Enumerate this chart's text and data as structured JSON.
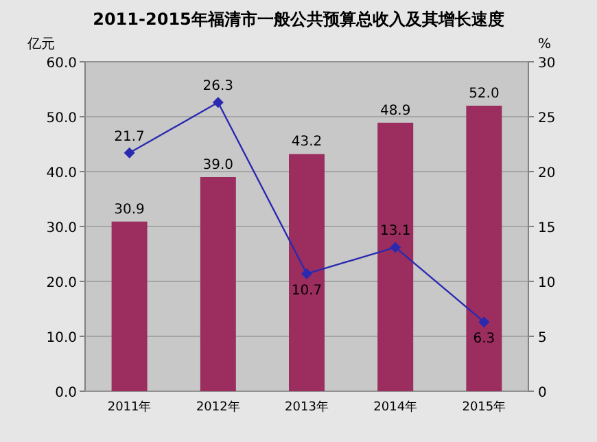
{
  "chart_data": {
    "type": "bar",
    "title": "2011-2015年福清市一般公共预算总收入及其增长速度",
    "ylabel": "亿元",
    "y2label": "%",
    "categories": [
      "2011年",
      "2012年",
      "2013年",
      "2014年",
      "2015年"
    ],
    "series": [
      {
        "color": "#9b2d5f",
        "values": [
          30.9,
          39.0,
          43.2,
          48.9,
          52.0
        ],
        "value_labels": [
          "30.9",
          "39.0",
          "43.2",
          "48.9",
          "52.0"
        ]
      },
      {
        "type": "line",
        "axis": "y2",
        "color": "#2a2ab0",
        "marker": "diamond",
        "values": [
          21.7,
          26.3,
          10.7,
          13.1,
          6.3
        ],
        "value_labels": [
          "21.7",
          "26.3",
          "10.7",
          "13.1",
          "6.3"
        ]
      }
    ],
    "ylim": [
      0,
      60
    ],
    "yticks": [
      {
        "value": 0,
        "label": "0.0"
      },
      {
        "value": 10,
        "label": "10.0"
      },
      {
        "value": 20,
        "label": "20.0"
      },
      {
        "value": 30,
        "label": "30.0"
      },
      {
        "value": 40,
        "label": "40.0"
      },
      {
        "value": 50,
        "label": "50.0"
      },
      {
        "value": 60,
        "label": "60.0"
      }
    ],
    "y2lim": [
      0,
      30
    ],
    "y2ticks": [
      0,
      5,
      10,
      15,
      20,
      25,
      30
    ],
    "grid": "y"
  }
}
